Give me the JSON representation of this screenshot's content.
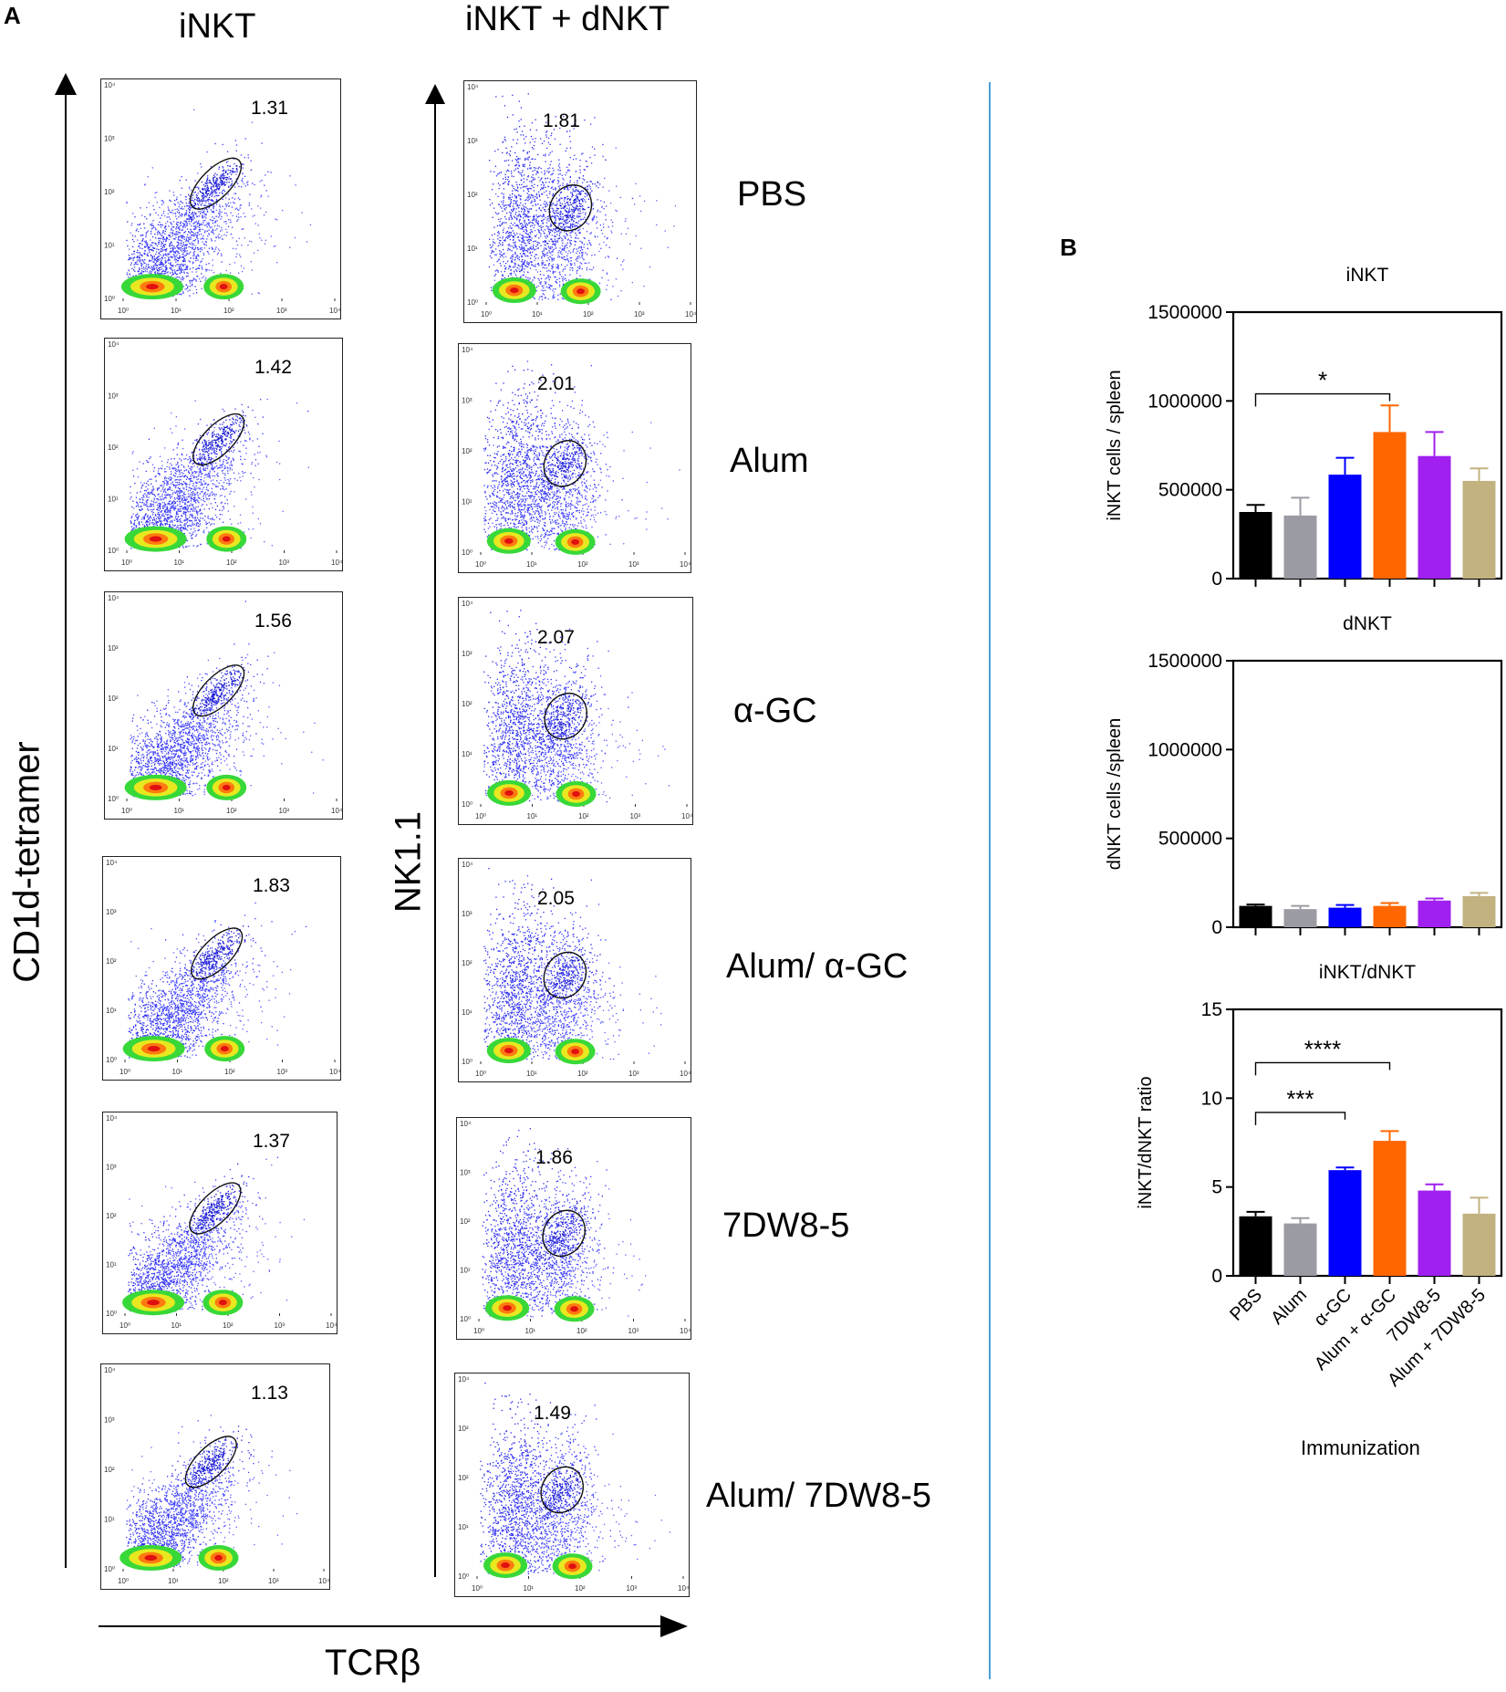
{
  "panel_a": {
    "letter": "A",
    "col_titles": [
      "iNKT",
      "iNKT + dNKT"
    ],
    "y_axis_left": "CD1d-tetramer",
    "y_axis_mid": "NK1.1",
    "x_axis": "TCRβ",
    "tick_labels": [
      "10⁰",
      "10¹",
      "10²",
      "10³",
      "10⁴"
    ],
    "treatments": [
      "PBS",
      "Alum",
      "α-GC",
      "Alum/ α-GC",
      "7DW8-5",
      "Alum/ 7DW8-5"
    ],
    "inkt_gates": [
      "1.31",
      "1.42",
      "1.56",
      "1.83",
      "1.37",
      "1.13"
    ],
    "dnkt_gates": [
      "1.81",
      "2.01",
      "2.07",
      "2.05",
      "1.86",
      "1.49"
    ]
  },
  "panel_b": {
    "letter": "B",
    "xlabel": "Immunization"
  },
  "chart_data": [
    {
      "type": "bar",
      "title": "iNKT",
      "ylabel": "iNKT cells / spleen",
      "xlabel": "Immunization",
      "categories": [
        "PBS",
        "Alum",
        "α-GC",
        "Alum + α-GC",
        "7DW8-5",
        "Alum + 7DW8-5"
      ],
      "values": [
        375000,
        355000,
        585000,
        825000,
        690000,
        550000
      ],
      "errors": [
        40000,
        100000,
        95000,
        150000,
        135000,
        70000
      ],
      "colors": [
        "#000000",
        "#9b9ba3",
        "#0000ff",
        "#ff6600",
        "#a020f0",
        "#c2b280"
      ],
      "ylim": [
        0,
        1500000
      ],
      "yticks": [
        "0",
        "500000",
        "1000000",
        "1500000"
      ],
      "yticks_values": [
        0,
        500000,
        1000000,
        1500000
      ],
      "significance": [
        {
          "from": 0,
          "to": 3,
          "label": "*"
        }
      ]
    },
    {
      "type": "bar",
      "title": "dNKT",
      "ylabel": "dNKT cells /spleen",
      "xlabel": "Immunization",
      "categories": [
        "PBS",
        "Alum",
        "α-GC",
        "Alum + α-GC",
        "7DW8-5",
        "Alum + 7DW8-5"
      ],
      "values": [
        120000,
        102000,
        110000,
        120000,
        150000,
        175000
      ],
      "errors": [
        8000,
        18000,
        15000,
        16000,
        12000,
        18000
      ],
      "colors": [
        "#000000",
        "#9b9ba3",
        "#0000ff",
        "#ff6600",
        "#a020f0",
        "#c2b280"
      ],
      "ylim": [
        0,
        1500000
      ],
      "yticks": [
        "0",
        "500000",
        "1000000",
        "1500000"
      ],
      "yticks_values": [
        0,
        500000,
        1000000,
        1500000
      ],
      "significance": []
    },
    {
      "type": "bar",
      "title": "iNKT/dNKT",
      "ylabel": "iNKT/dNKT ratio",
      "xlabel": "Immunization",
      "categories": [
        "PBS",
        "Alum",
        "α-GC",
        "Alum + α-GC",
        "7DW8-5",
        "Alum + 7DW8-5"
      ],
      "values": [
        3.35,
        2.95,
        5.95,
        7.6,
        4.8,
        3.5
      ],
      "errors": [
        0.25,
        0.3,
        0.15,
        0.55,
        0.35,
        0.9
      ],
      "colors": [
        "#000000",
        "#9b9ba3",
        "#0000ff",
        "#ff6600",
        "#a020f0",
        "#c2b280"
      ],
      "ylim": [
        0,
        15
      ],
      "yticks": [
        "0",
        "5",
        "10",
        "15"
      ],
      "yticks_values": [
        0,
        5,
        10,
        15
      ],
      "significance": [
        {
          "from": 0,
          "to": 2,
          "label": "***"
        },
        {
          "from": 0,
          "to": 3,
          "label": "****"
        }
      ]
    }
  ]
}
